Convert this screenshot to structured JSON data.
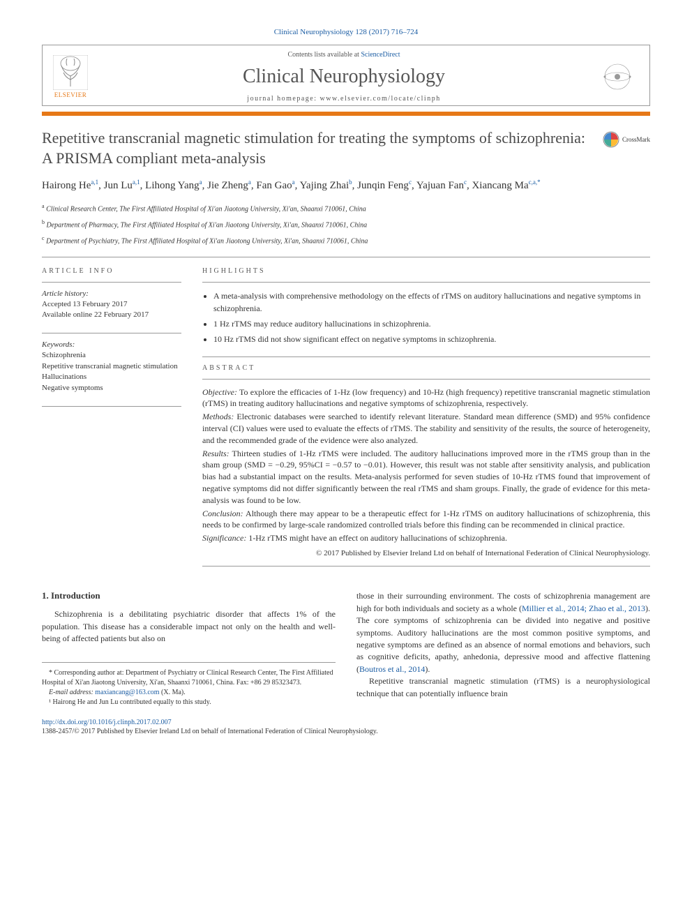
{
  "citation": "Clinical Neurophysiology 128 (2017) 716–724",
  "header": {
    "contents_prefix": "Contents lists available at ",
    "contents_link": "ScienceDirect",
    "journal": "Clinical Neurophysiology",
    "homepage_prefix": "journal homepage: ",
    "homepage_url": "www.elsevier.com/locate/clinph",
    "publisher": "ELSEVIER"
  },
  "crossmark": "CrossMark",
  "title": "Repetitive transcranial magnetic stimulation for treating the symptoms of schizophrenia: A PRISMA compliant meta-analysis",
  "authors_html": "Hairong He<sup>a,1</sup>, Jun Lu<sup>a,1</sup>, Lihong Yang<sup>a</sup>, Jie Zheng<sup>a</sup>, Fan Gao<sup>a</sup>, Yajing Zhai<sup>b</sup>, Junqin Feng<sup>c</sup>, Yajuan Fan<sup>c</sup>, Xiancang Ma<sup>c,a,*</sup>",
  "affiliations": [
    {
      "sup": "a",
      "text": "Clinical Research Center, The First Affiliated Hospital of Xi'an Jiaotong University, Xi'an, Shaanxi 710061, China"
    },
    {
      "sup": "b",
      "text": "Department of Pharmacy, The First Affiliated Hospital of Xi'an Jiaotong University, Xi'an, Shaanxi 710061, China"
    },
    {
      "sup": "c",
      "text": "Department of Psychiatry, The First Affiliated Hospital of Xi'an Jiaotong University, Xi'an, Shaanxi 710061, China"
    }
  ],
  "article_info": {
    "heading": "ARTICLE INFO",
    "history_label": "Article history:",
    "history_accepted": "Accepted 13 February 2017",
    "history_online": "Available online 22 February 2017",
    "keywords_label": "Keywords:",
    "keywords": [
      "Schizophrenia",
      "Repetitive transcranial magnetic stimulation",
      "Hallucinations",
      "Negative symptoms"
    ]
  },
  "highlights": {
    "heading": "HIGHLIGHTS",
    "items": [
      "A meta-analysis with comprehensive methodology on the effects of rTMS on auditory hallucinations and negative symptoms in schizophrenia.",
      "1 Hz rTMS may reduce auditory hallucinations in schizophrenia.",
      "10 Hz rTMS did not show significant effect on negative symptoms in schizophrenia."
    ]
  },
  "abstract": {
    "heading": "ABSTRACT",
    "sections": [
      {
        "label": "Objective:",
        "text": " To explore the efficacies of 1-Hz (low frequency) and 10-Hz (high frequency) repetitive transcranial magnetic stimulation (rTMS) in treating auditory hallucinations and negative symptoms of schizophrenia, respectively."
      },
      {
        "label": "Methods:",
        "text": " Electronic databases were searched to identify relevant literature. Standard mean difference (SMD) and 95% confidence interval (CI) values were used to evaluate the effects of rTMS. The stability and sensitivity of the results, the source of heterogeneity, and the recommended grade of the evidence were also analyzed."
      },
      {
        "label": "Results:",
        "text": " Thirteen studies of 1-Hz rTMS were included. The auditory hallucinations improved more in the rTMS group than in the sham group (SMD = −0.29, 95%CI = −0.57 to −0.01). However, this result was not stable after sensitivity analysis, and publication bias had a substantial impact on the results. Meta-analysis performed for seven studies of 10-Hz rTMS found that improvement of negative symptoms did not differ significantly between the real rTMS and sham groups. Finally, the grade of evidence for this meta-analysis was found to be low."
      },
      {
        "label": "Conclusion:",
        "text": " Although there may appear to be a therapeutic effect for 1-Hz rTMS on auditory hallucinations of schizophrenia, this needs to be confirmed by large-scale randomized controlled trials before this finding can be recommended in clinical practice."
      },
      {
        "label": "Significance:",
        "text": " 1-Hz rTMS might have an effect on auditory hallucinations of schizophrenia."
      }
    ],
    "copyright": "© 2017 Published by Elsevier Ireland Ltd on behalf of International Federation of Clinical Neurophysiology."
  },
  "body": {
    "intro_heading": "1. Introduction",
    "left_p1": "Schizophrenia is a debilitating psychiatric disorder that affects 1% of the population. This disease has a considerable impact not only on the health and well-being of affected patients but also on",
    "right_p1_a": "those in their surrounding environment. The costs of schizophrenia management are high for both individuals and society as a whole (",
    "right_p1_link1": "Millier et al., 2014; Zhao et al., 2013",
    "right_p1_b": "). The core symptoms of schizophrenia can be divided into negative and positive symptoms. Auditory hallucinations are the most common positive symptoms, and negative symptoms are defined as an absence of normal emotions and behaviors, such as cognitive deficits, apathy, anhedonia, depressive mood and affective flattening (",
    "right_p1_link2": "Boutros et al., 2014",
    "right_p1_c": ").",
    "right_p2": "Repetitive transcranial magnetic stimulation (rTMS) is a neurophysiological technique that can potentially influence brain"
  },
  "footnotes": {
    "corr": "* Corresponding author at: Department of Psychiatry or Clinical Research Center, The First Affiliated Hospital of Xi'an Jiaotong University, Xi'an, Shaanxi 710061, China. Fax: +86 29 85323473.",
    "email_label": "E-mail address: ",
    "email": "maxiancang@163.com",
    "email_suffix": " (X. Ma).",
    "equal": "¹ Hairong He and Jun Lu contributed equally to this study."
  },
  "doi": "http://dx.doi.org/10.1016/j.clinph.2017.02.007",
  "issn": "1388-2457/© 2017 Published by Elsevier Ireland Ltd on behalf of International Federation of Clinical Neurophysiology.",
  "colors": {
    "accent": "#e67817",
    "link": "#1a5ca3",
    "text": "#333333",
    "heading_gray": "#4a4a4a"
  }
}
